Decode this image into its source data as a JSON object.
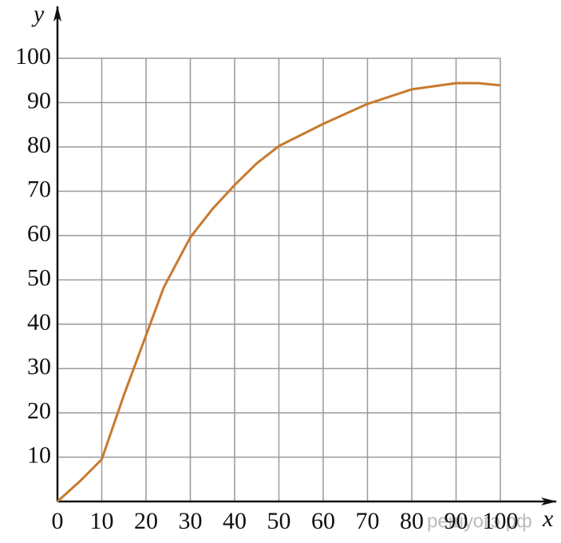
{
  "chart_data": {
    "type": "line",
    "x_label": "x",
    "y_label": "y",
    "xlim": [
      0,
      100
    ],
    "ylim": [
      0,
      100
    ],
    "xticks": [
      0,
      10,
      20,
      30,
      40,
      50,
      60,
      70,
      80,
      90,
      100
    ],
    "yticks": [
      10,
      20,
      30,
      40,
      50,
      60,
      70,
      80,
      90,
      100
    ],
    "grid": true,
    "watermark": "решуогэ.рф",
    "series": [
      {
        "name": "y",
        "color": "#c87a2e",
        "x": [
          0,
          5,
          10,
          15,
          20,
          24,
          30,
          35,
          40,
          45,
          50,
          55,
          60,
          70,
          80,
          90,
          95,
          100
        ],
        "values": [
          0,
          4.5,
          9.5,
          24,
          37.5,
          48.3,
          59.6,
          66,
          71.4,
          76.3,
          80.2,
          82.7,
          85.2,
          89.7,
          93,
          94.4,
          94.4,
          93.9
        ]
      }
    ]
  }
}
